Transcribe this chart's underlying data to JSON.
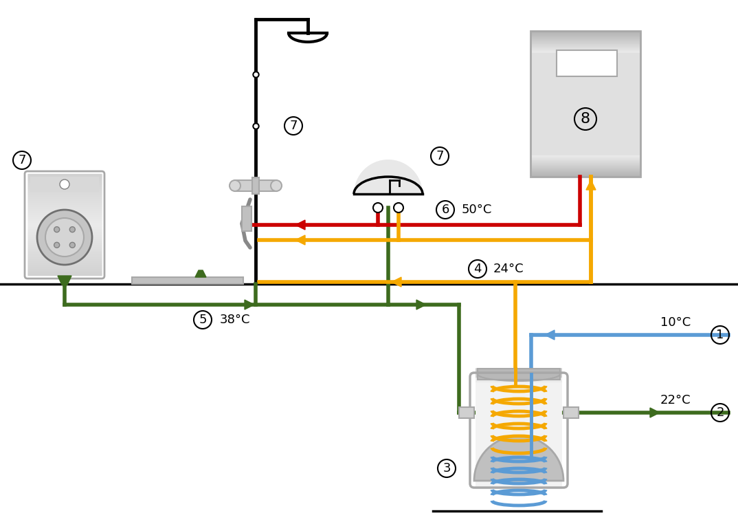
{
  "bg_color": "#ffffff",
  "colors": {
    "cold_water": "#5b9bd5",
    "hot_water": "#cc0000",
    "warm": "#f5a800",
    "waste": "#3d6b1e",
    "black": "#000000",
    "gray_light": "#e0e0e0",
    "gray_mid": "#a8a8a8",
    "gray_dark": "#707070"
  },
  "temps": {
    "1": "10°C",
    "2": "22°C",
    "4": "24°C",
    "5": "38°C",
    "6": "50°C"
  },
  "lw": 4.0,
  "lw_black": 3.0
}
